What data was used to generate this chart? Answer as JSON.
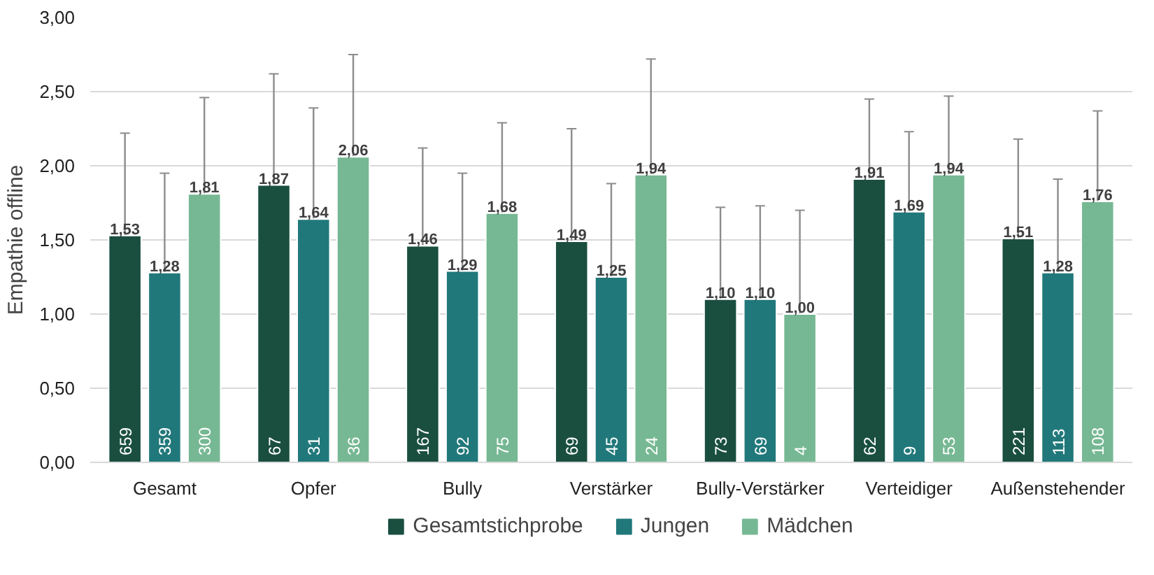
{
  "chart_data": {
    "type": "bar",
    "ylabel": "Empathie offline",
    "categories": [
      "Gesamt",
      "Opfer",
      "Bully",
      "Verstärker",
      "Bully-Verstärker",
      "Verteidiger",
      "Außenstehender"
    ],
    "series": [
      {
        "name": "Gesamtstichprobe",
        "color": "#1a4f40",
        "values": [
          1.53,
          1.87,
          1.46,
          1.49,
          1.1,
          1.91,
          1.51
        ],
        "errors": [
          0.69,
          0.75,
          0.66,
          0.76,
          0.62,
          0.54,
          0.67
        ],
        "value_labels": [
          "1,53",
          "1,87",
          "1,46",
          "1,49",
          "1,10",
          "1,91",
          "1,51"
        ]
      },
      {
        "name": "Jungen",
        "color": "#21787a",
        "values": [
          1.28,
          1.64,
          1.29,
          1.25,
          1.1,
          1.69,
          1.28
        ],
        "errors": [
          0.67,
          0.75,
          0.66,
          0.63,
          0.63,
          0.54,
          0.63
        ],
        "value_labels": [
          "1,28",
          "1,64",
          "1,29",
          "1,25",
          "1,10",
          "1,69",
          "1,28"
        ]
      },
      {
        "name": "Mädchen",
        "color": "#76b893",
        "values": [
          1.81,
          2.06,
          1.68,
          1.94,
          1.0,
          1.94,
          1.76
        ],
        "errors": [
          0.65,
          0.69,
          0.61,
          0.78,
          0.7,
          0.53,
          0.61
        ],
        "value_labels": [
          "1,81",
          "2,06",
          "1,68",
          "1,94",
          "1,00",
          "1,94",
          "1,76"
        ]
      }
    ],
    "ylim": [
      0,
      3
    ],
    "yticks": [
      {
        "value": 0,
        "label": "0,00"
      },
      {
        "value": 0.5,
        "label": "0,50"
      },
      {
        "value": 1,
        "label": "1,00"
      },
      {
        "value": 1.5,
        "label": "1,50"
      },
      {
        "value": 2,
        "label": "2,00"
      },
      {
        "value": 2.5,
        "label": "2,50"
      },
      {
        "value": 3,
        "label": "3,00"
      }
    ],
    "grid": "y",
    "legend": "bottom",
    "annotations": [
      {
        "text": "659",
        "x": "Gesamt",
        "y": 0
      },
      {
        "text": "359",
        "x": "Gesamt",
        "y": 0
      },
      {
        "text": "300",
        "x": "Gesamt",
        "y": 0
      },
      {
        "text": "67",
        "x": "Opfer",
        "y": 0
      },
      {
        "text": "31",
        "x": "Opfer",
        "y": 0
      },
      {
        "text": "36",
        "x": "Opfer",
        "y": 0
      },
      {
        "text": "167",
        "x": "Bully",
        "y": 0
      },
      {
        "text": "92",
        "x": "Bully",
        "y": 0
      },
      {
        "text": "75",
        "x": "Bully",
        "y": 0
      },
      {
        "text": "69",
        "x": "Verstärker",
        "y": 0
      },
      {
        "text": "45",
        "x": "Verstärker",
        "y": 0
      },
      {
        "text": "24",
        "x": "Verstärker",
        "y": 0
      },
      {
        "text": "73",
        "x": "Bully-Verstärker",
        "y": 0
      },
      {
        "text": "69",
        "x": "Bully-Verstärker",
        "y": 0
      },
      {
        "text": "4",
        "x": "Bully-Verstärker",
        "y": 0
      },
      {
        "text": "62",
        "x": "Verteidiger",
        "y": 0
      },
      {
        "text": "9",
        "x": "Verteidiger",
        "y": 0
      },
      {
        "text": "53",
        "x": "Verteidiger",
        "y": 0
      },
      {
        "text": "221",
        "x": "Außenstehender",
        "y": 0
      },
      {
        "text": "113",
        "x": "Außenstehender",
        "y": 0
      },
      {
        "text": "108",
        "x": "Außenstehender",
        "y": 0
      }
    ]
  }
}
